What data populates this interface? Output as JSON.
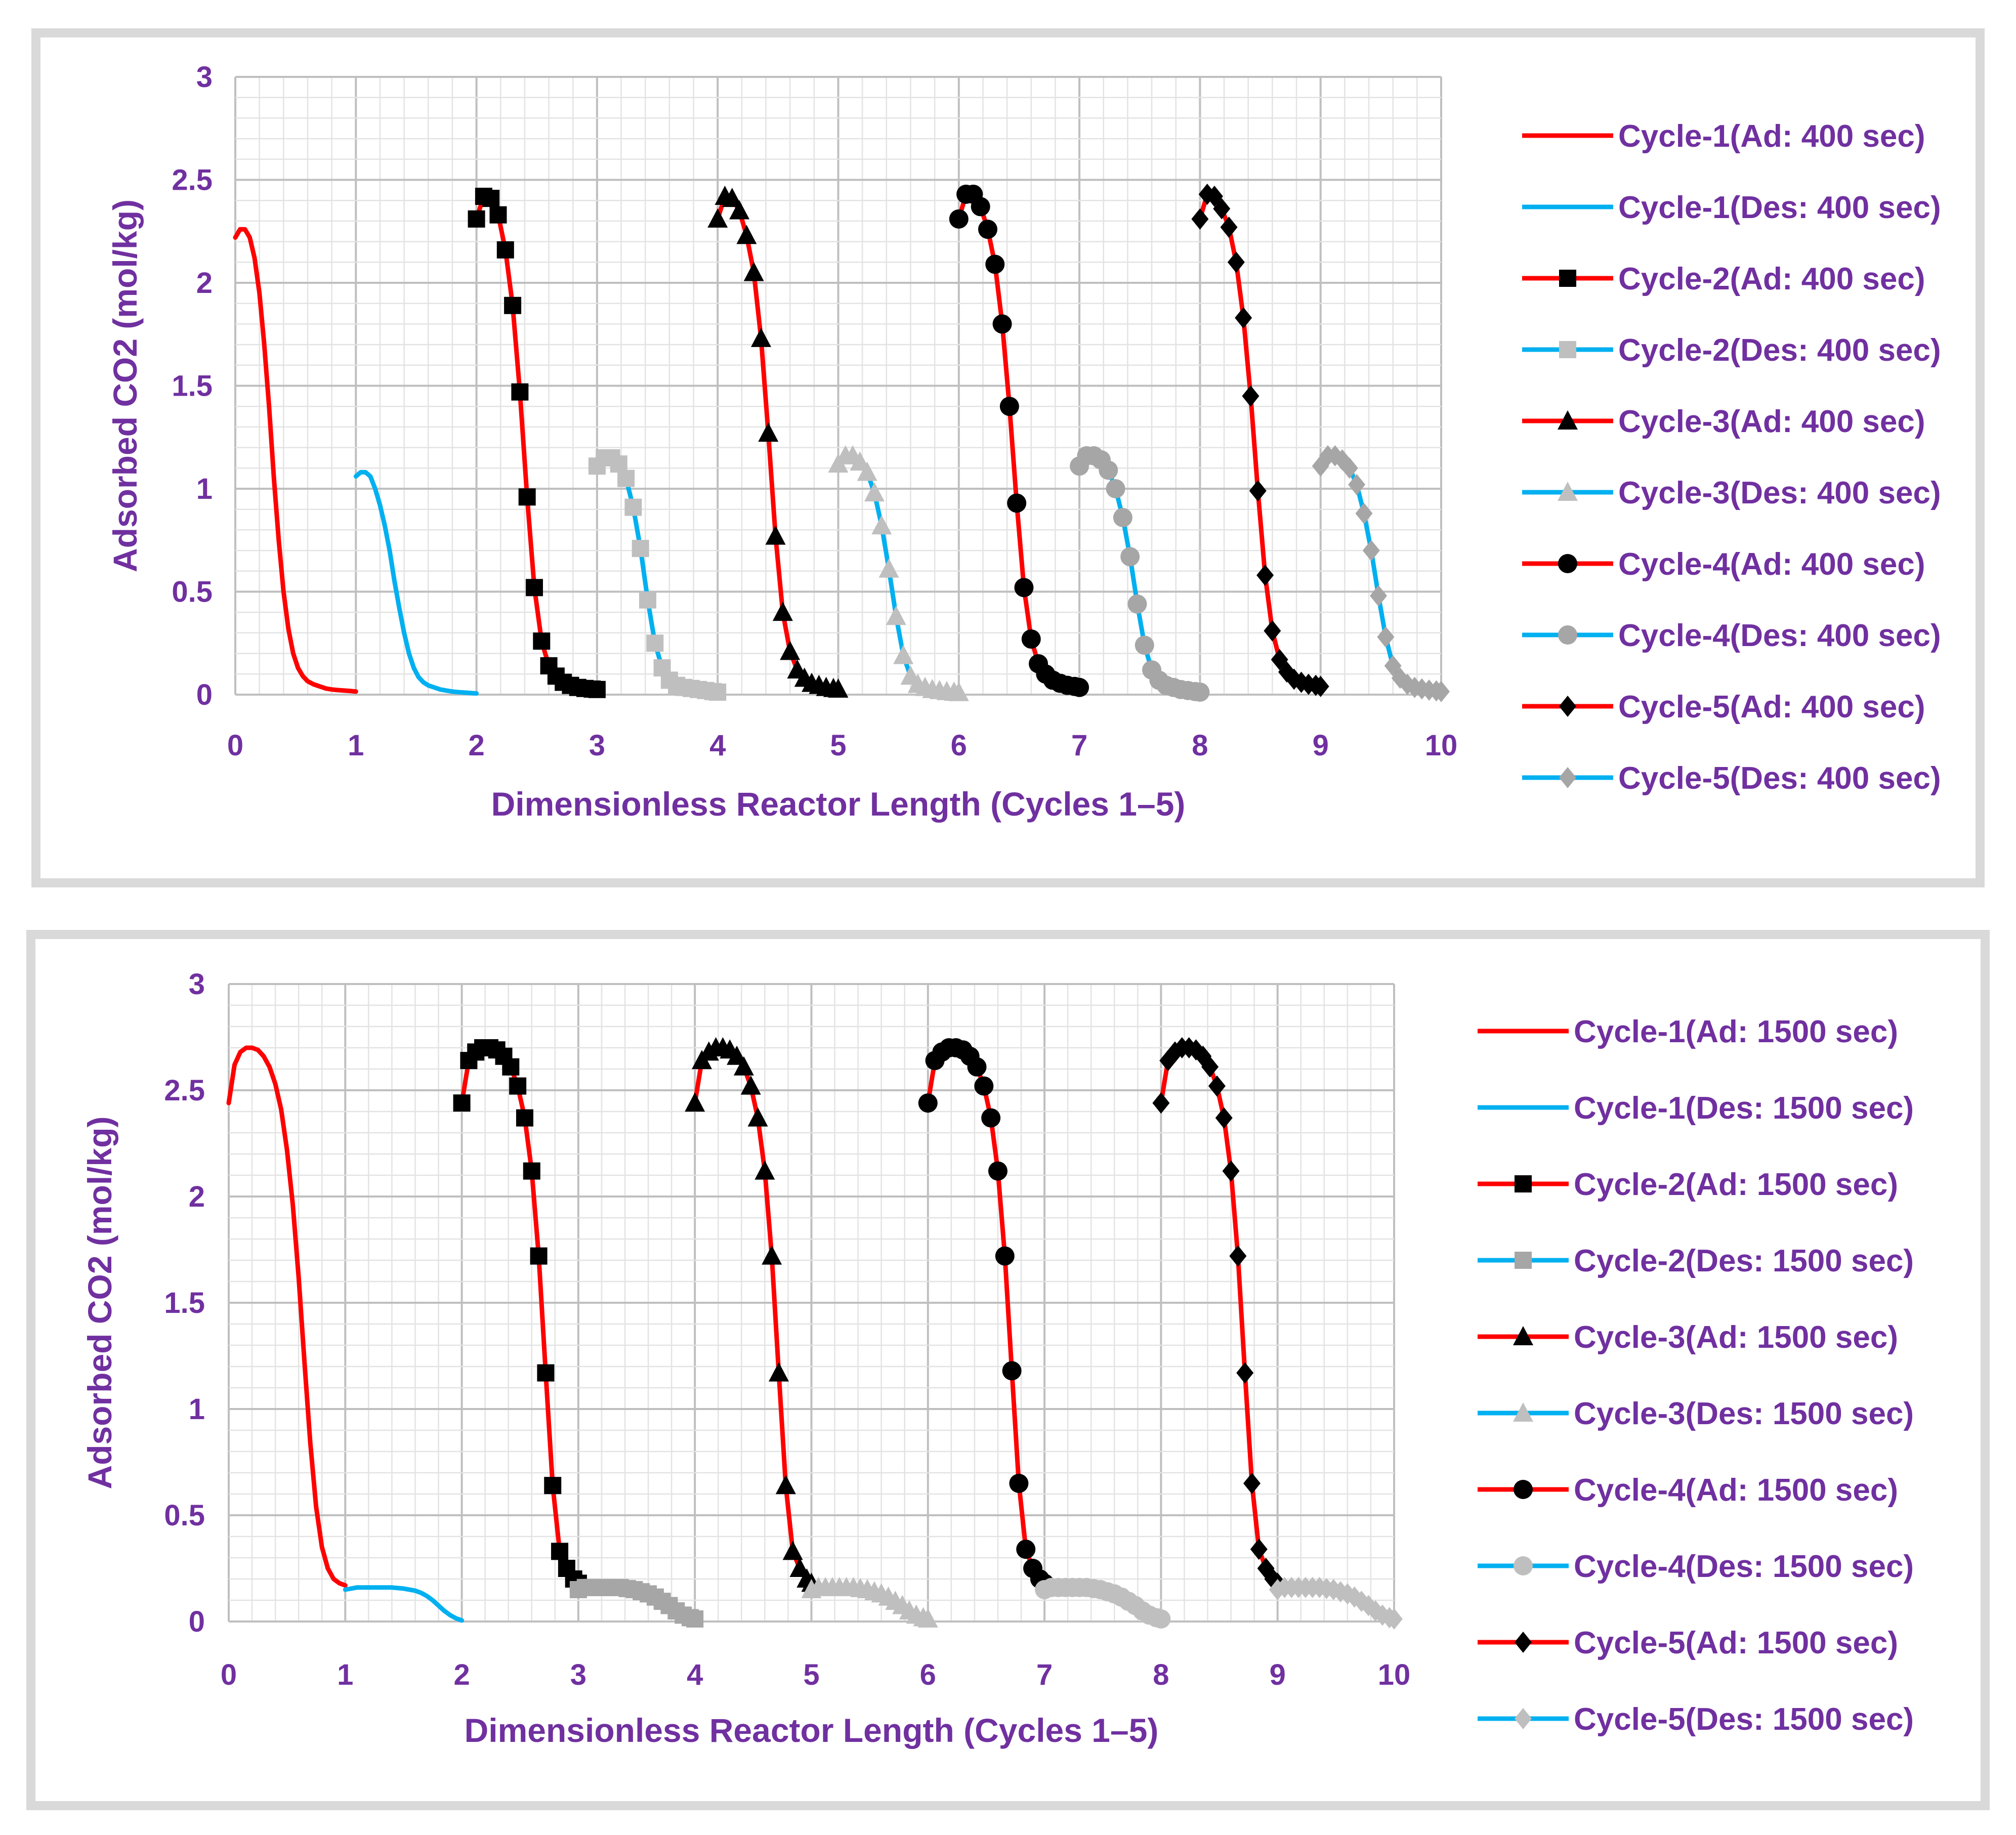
{
  "chart_data": [
    {
      "type": "line",
      "xlabel": "Dimensionless Reactor Length (Cycles 1–5)",
      "ylabel": "Adsorbed CO2 (mol/kg)",
      "xlim": [
        0,
        10
      ],
      "ylim": [
        0,
        3
      ],
      "xticks": [
        "0",
        "1",
        "2",
        "3",
        "4",
        "5",
        "6",
        "7",
        "8",
        "9",
        "10"
      ],
      "yticks": [
        "0",
        "0.5",
        "1",
        "1.5",
        "2",
        "2.5",
        "3"
      ],
      "grid": true,
      "legend_position": "right",
      "series": [
        {
          "name": "Cycle-1(Ad: 400 sec)",
          "color": "#ff0000",
          "marker": "none",
          "x": [
            0,
            0.04,
            0.08,
            0.12,
            0.16,
            0.2,
            0.24,
            0.28,
            0.32,
            0.36,
            0.4,
            0.44,
            0.48,
            0.52,
            0.56,
            0.6,
            0.65,
            0.7,
            0.75,
            0.8,
            0.85,
            0.9,
            0.95,
            1.0
          ],
          "y": [
            2.22,
            2.26,
            2.26,
            2.22,
            2.12,
            1.95,
            1.7,
            1.4,
            1.05,
            0.75,
            0.5,
            0.32,
            0.2,
            0.13,
            0.09,
            0.065,
            0.05,
            0.04,
            0.03,
            0.025,
            0.022,
            0.02,
            0.018,
            0.015
          ]
        },
        {
          "name": "Cycle-1(Des: 400 sec)",
          "color": "#00b0f0",
          "marker": "none",
          "x": [
            1.0,
            1.04,
            1.08,
            1.12,
            1.16,
            1.2,
            1.24,
            1.28,
            1.32,
            1.36,
            1.4,
            1.44,
            1.48,
            1.52,
            1.56,
            1.6,
            1.65,
            1.7,
            1.75,
            1.8,
            1.85,
            1.9,
            1.95,
            2.0
          ],
          "y": [
            1.06,
            1.08,
            1.08,
            1.06,
            1.0,
            0.92,
            0.82,
            0.7,
            0.55,
            0.42,
            0.3,
            0.2,
            0.13,
            0.085,
            0.06,
            0.045,
            0.035,
            0.025,
            0.02,
            0.015,
            0.012,
            0.01,
            0.008,
            0.006
          ]
        },
        {
          "name": "Cycle-2(Ad: 400 sec)",
          "color": "#ff0000",
          "marker": "square",
          "marker_color": "#000000",
          "x": [
            2.0,
            2.06,
            2.12,
            2.18,
            2.24,
            2.3,
            2.36,
            2.42,
            2.48,
            2.54,
            2.6,
            2.66,
            2.72,
            2.78,
            2.84,
            2.9,
            2.96,
            3.0
          ],
          "y": [
            2.31,
            2.42,
            2.41,
            2.33,
            2.16,
            1.89,
            1.47,
            0.96,
            0.52,
            0.26,
            0.14,
            0.09,
            0.06,
            0.045,
            0.035,
            0.03,
            0.027,
            0.025
          ]
        },
        {
          "name": "Cycle-2(Des: 400 sec)",
          "color": "#00b0f0",
          "marker": "square",
          "marker_color": "#bfbfbf",
          "x": [
            3.0,
            3.06,
            3.12,
            3.18,
            3.24,
            3.3,
            3.36,
            3.42,
            3.48,
            3.54,
            3.6,
            3.66,
            3.72,
            3.78,
            3.84,
            3.9,
            3.96,
            4.0
          ],
          "y": [
            1.11,
            1.15,
            1.15,
            1.12,
            1.05,
            0.91,
            0.71,
            0.46,
            0.25,
            0.13,
            0.07,
            0.045,
            0.035,
            0.03,
            0.025,
            0.02,
            0.015,
            0.012
          ]
        },
        {
          "name": "Cycle-3(Ad: 400 sec)",
          "color": "#ff0000",
          "marker": "triangle",
          "marker_color": "#000000",
          "x": [
            4.0,
            4.06,
            4.12,
            4.18,
            4.24,
            4.3,
            4.36,
            4.42,
            4.48,
            4.54,
            4.6,
            4.66,
            4.72,
            4.78,
            4.84,
            4.9,
            4.96,
            5.0
          ],
          "y": [
            2.31,
            2.42,
            2.41,
            2.35,
            2.23,
            2.05,
            1.73,
            1.27,
            0.77,
            0.4,
            0.21,
            0.12,
            0.08,
            0.055,
            0.045,
            0.035,
            0.03,
            0.027
          ]
        },
        {
          "name": "Cycle-3(Des: 400 sec)",
          "color": "#00b0f0",
          "marker": "triangle",
          "marker_color": "#bfbfbf",
          "x": [
            5.0,
            5.06,
            5.12,
            5.18,
            5.24,
            5.3,
            5.36,
            5.42,
            5.48,
            5.54,
            5.6,
            5.66,
            5.72,
            5.78,
            5.84,
            5.9,
            5.96,
            6.0
          ],
          "y": [
            1.12,
            1.16,
            1.16,
            1.13,
            1.08,
            0.98,
            0.82,
            0.61,
            0.38,
            0.19,
            0.09,
            0.05,
            0.035,
            0.025,
            0.02,
            0.015,
            0.012,
            0.01
          ]
        },
        {
          "name": "Cycle-4(Ad: 400 sec)",
          "color": "#ff0000",
          "marker": "circle",
          "marker_color": "#000000",
          "x": [
            6.0,
            6.06,
            6.12,
            6.18,
            6.24,
            6.3,
            6.36,
            6.42,
            6.48,
            6.54,
            6.6,
            6.66,
            6.72,
            6.78,
            6.84,
            6.9,
            6.96,
            7.0
          ],
          "y": [
            2.31,
            2.43,
            2.43,
            2.37,
            2.26,
            2.09,
            1.8,
            1.4,
            0.93,
            0.52,
            0.27,
            0.15,
            0.1,
            0.07,
            0.055,
            0.045,
            0.04,
            0.035
          ]
        },
        {
          "name": "Cycle-4(Des: 400 sec)",
          "color": "#00b0f0",
          "marker": "circle",
          "marker_color": "#a6a6a6",
          "x": [
            7.0,
            7.06,
            7.12,
            7.18,
            7.24,
            7.3,
            7.36,
            7.42,
            7.48,
            7.54,
            7.6,
            7.66,
            7.72,
            7.78,
            7.84,
            7.9,
            7.96,
            8.0
          ],
          "y": [
            1.11,
            1.16,
            1.16,
            1.14,
            1.09,
            1.0,
            0.86,
            0.67,
            0.44,
            0.24,
            0.12,
            0.07,
            0.045,
            0.035,
            0.025,
            0.02,
            0.015,
            0.012
          ]
        },
        {
          "name": "Cycle-5(Ad: 400 sec)",
          "color": "#ff0000",
          "marker": "diamond",
          "marker_color": "#000000",
          "x": [
            8.0,
            8.06,
            8.12,
            8.18,
            8.24,
            8.3,
            8.36,
            8.42,
            8.48,
            8.54,
            8.6,
            8.66,
            8.72,
            8.78,
            8.84,
            8.9,
            8.96,
            9.0
          ],
          "y": [
            2.31,
            2.43,
            2.42,
            2.36,
            2.27,
            2.1,
            1.83,
            1.45,
            0.99,
            0.58,
            0.31,
            0.17,
            0.11,
            0.075,
            0.06,
            0.05,
            0.045,
            0.04
          ]
        },
        {
          "name": "Cycle-5(Des: 400 sec)",
          "color": "#00b0f0",
          "marker": "diamond",
          "marker_color": "#a6a6a6",
          "x": [
            9.0,
            9.06,
            9.12,
            9.18,
            9.24,
            9.3,
            9.36,
            9.42,
            9.48,
            9.54,
            9.6,
            9.66,
            9.72,
            9.78,
            9.84,
            9.9,
            9.96,
            10.0
          ],
          "y": [
            1.11,
            1.16,
            1.16,
            1.14,
            1.1,
            1.02,
            0.88,
            0.7,
            0.48,
            0.28,
            0.14,
            0.08,
            0.05,
            0.035,
            0.028,
            0.022,
            0.018,
            0.015
          ]
        }
      ]
    },
    {
      "type": "line",
      "xlabel": "Dimensionless Reactor Length (Cycles 1–5)",
      "ylabel": "Adsorbed CO2 (mol/kg)",
      "xlim": [
        0,
        10
      ],
      "ylim": [
        0,
        3
      ],
      "xticks": [
        "0",
        "1",
        "2",
        "3",
        "4",
        "5",
        "6",
        "7",
        "8",
        "9",
        "10"
      ],
      "yticks": [
        "0",
        "0.5",
        "1",
        "1.5",
        "2",
        "2.5",
        "3"
      ],
      "grid": true,
      "legend_position": "right",
      "series": [
        {
          "name": "Cycle-1(Ad: 1500 sec)",
          "color": "#ff0000",
          "marker": "none",
          "x": [
            0,
            0.05,
            0.1,
            0.15,
            0.2,
            0.25,
            0.3,
            0.35,
            0.4,
            0.45,
            0.5,
            0.55,
            0.6,
            0.65,
            0.7,
            0.75,
            0.8,
            0.85,
            0.9,
            0.95,
            1.0
          ],
          "y": [
            2.44,
            2.62,
            2.68,
            2.7,
            2.7,
            2.69,
            2.66,
            2.61,
            2.53,
            2.41,
            2.22,
            1.96,
            1.62,
            1.22,
            0.84,
            0.54,
            0.35,
            0.25,
            0.2,
            0.18,
            0.17
          ]
        },
        {
          "name": "Cycle-1(Des: 1500 sec)",
          "color": "#00b0f0",
          "marker": "none",
          "x": [
            1.0,
            1.1,
            1.2,
            1.3,
            1.4,
            1.5,
            1.6,
            1.65,
            1.7,
            1.75,
            1.8,
            1.85,
            1.9,
            1.95,
            2.0
          ],
          "y": [
            0.15,
            0.16,
            0.16,
            0.16,
            0.16,
            0.155,
            0.145,
            0.135,
            0.12,
            0.1,
            0.075,
            0.05,
            0.03,
            0.015,
            0.005
          ]
        },
        {
          "name": "Cycle-2(Ad: 1500 sec)",
          "color": "#ff0000",
          "marker": "square",
          "marker_color": "#000000",
          "x": [
            2.0,
            2.06,
            2.12,
            2.18,
            2.24,
            2.3,
            2.36,
            2.42,
            2.48,
            2.54,
            2.6,
            2.66,
            2.72,
            2.78,
            2.84,
            2.9,
            2.96,
            3.0
          ],
          "y": [
            2.44,
            2.64,
            2.68,
            2.7,
            2.7,
            2.69,
            2.66,
            2.61,
            2.52,
            2.37,
            2.12,
            1.72,
            1.17,
            0.64,
            0.33,
            0.25,
            0.2,
            0.18
          ]
        },
        {
          "name": "Cycle-2(Des: 1500 sec)",
          "color": "#00b0f0",
          "marker": "square",
          "marker_color": "#a6a6a6",
          "x": [
            3.0,
            3.06,
            3.12,
            3.18,
            3.24,
            3.3,
            3.36,
            3.42,
            3.48,
            3.54,
            3.6,
            3.66,
            3.72,
            3.78,
            3.84,
            3.9,
            3.96,
            4.0
          ],
          "y": [
            0.15,
            0.16,
            0.16,
            0.16,
            0.16,
            0.16,
            0.16,
            0.155,
            0.15,
            0.14,
            0.13,
            0.115,
            0.095,
            0.075,
            0.05,
            0.03,
            0.018,
            0.012
          ]
        },
        {
          "name": "Cycle-3(Ad: 1500 sec)",
          "color": "#ff0000",
          "marker": "triangle",
          "marker_color": "#000000",
          "x": [
            4.0,
            4.06,
            4.12,
            4.18,
            4.24,
            4.3,
            4.36,
            4.42,
            4.48,
            4.54,
            4.6,
            4.66,
            4.72,
            4.78,
            4.84,
            4.9,
            4.96,
            5.0
          ],
          "y": [
            2.44,
            2.64,
            2.68,
            2.7,
            2.7,
            2.69,
            2.66,
            2.61,
            2.52,
            2.37,
            2.12,
            1.72,
            1.17,
            0.64,
            0.33,
            0.25,
            0.2,
            0.18
          ]
        },
        {
          "name": "Cycle-3(Des: 1500 sec)",
          "color": "#00b0f0",
          "marker": "triangle",
          "marker_color": "#bfbfbf",
          "x": [
            5.0,
            5.06,
            5.12,
            5.18,
            5.24,
            5.3,
            5.36,
            5.42,
            5.48,
            5.54,
            5.6,
            5.66,
            5.72,
            5.78,
            5.84,
            5.9,
            5.96,
            6.0
          ],
          "y": [
            0.15,
            0.16,
            0.16,
            0.16,
            0.16,
            0.16,
            0.16,
            0.155,
            0.15,
            0.14,
            0.13,
            0.115,
            0.095,
            0.075,
            0.05,
            0.03,
            0.018,
            0.012
          ]
        },
        {
          "name": "Cycle-4(Ad: 1500 sec)",
          "color": "#ff0000",
          "marker": "circle",
          "marker_color": "#000000",
          "x": [
            6.0,
            6.06,
            6.12,
            6.18,
            6.24,
            6.3,
            6.36,
            6.42,
            6.48,
            6.54,
            6.6,
            6.66,
            6.72,
            6.78,
            6.84,
            6.9,
            6.96,
            7.0
          ],
          "y": [
            2.44,
            2.64,
            2.68,
            2.7,
            2.7,
            2.69,
            2.66,
            2.61,
            2.52,
            2.37,
            2.12,
            1.72,
            1.18,
            0.65,
            0.34,
            0.25,
            0.2,
            0.18
          ]
        },
        {
          "name": "Cycle-4(Des: 1500 sec)",
          "color": "#00b0f0",
          "marker": "circle",
          "marker_color": "#bfbfbf",
          "x": [
            7.0,
            7.06,
            7.12,
            7.18,
            7.24,
            7.3,
            7.36,
            7.42,
            7.48,
            7.54,
            7.6,
            7.66,
            7.72,
            7.78,
            7.84,
            7.9,
            7.96,
            8.0
          ],
          "y": [
            0.15,
            0.16,
            0.16,
            0.16,
            0.16,
            0.16,
            0.16,
            0.155,
            0.15,
            0.14,
            0.13,
            0.115,
            0.095,
            0.075,
            0.05,
            0.03,
            0.018,
            0.012
          ]
        },
        {
          "name": "Cycle-5(Ad: 1500 sec)",
          "color": "#ff0000",
          "marker": "diamond",
          "marker_color": "#000000",
          "x": [
            8.0,
            8.06,
            8.12,
            8.18,
            8.24,
            8.3,
            8.36,
            8.42,
            8.48,
            8.54,
            8.6,
            8.66,
            8.72,
            8.78,
            8.84,
            8.9,
            8.96,
            9.0
          ],
          "y": [
            2.44,
            2.64,
            2.68,
            2.7,
            2.7,
            2.69,
            2.66,
            2.61,
            2.52,
            2.37,
            2.12,
            1.72,
            1.17,
            0.65,
            0.34,
            0.25,
            0.2,
            0.18
          ]
        },
        {
          "name": "Cycle-5(Des: 1500 sec)",
          "color": "#00b0f0",
          "marker": "diamond",
          "marker_color": "#bfbfbf",
          "x": [
            9.0,
            9.06,
            9.12,
            9.18,
            9.24,
            9.3,
            9.36,
            9.42,
            9.48,
            9.54,
            9.6,
            9.66,
            9.72,
            9.78,
            9.84,
            9.9,
            9.96,
            10.0
          ],
          "y": [
            0.15,
            0.16,
            0.16,
            0.16,
            0.16,
            0.16,
            0.16,
            0.155,
            0.15,
            0.14,
            0.13,
            0.115,
            0.095,
            0.075,
            0.05,
            0.03,
            0.018,
            0.012
          ]
        }
      ]
    }
  ]
}
